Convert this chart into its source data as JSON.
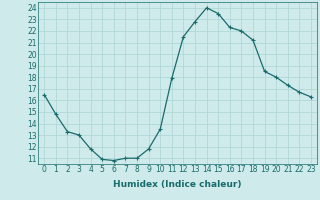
{
  "x": [
    0,
    1,
    2,
    3,
    4,
    5,
    6,
    7,
    8,
    9,
    10,
    11,
    12,
    13,
    14,
    15,
    16,
    17,
    18,
    19,
    20,
    21,
    22,
    23
  ],
  "y": [
    16.5,
    14.8,
    13.3,
    13.0,
    11.8,
    10.9,
    10.8,
    11.0,
    11.0,
    11.8,
    13.5,
    17.9,
    21.5,
    22.8,
    24.0,
    23.5,
    22.3,
    22.0,
    21.2,
    18.5,
    18.0,
    17.3,
    16.7,
    16.3
  ],
  "line_color": "#1a6b6b",
  "marker": "+",
  "marker_size": 3,
  "marker_lw": 0.8,
  "line_width": 0.9,
  "bg_color": "#ceeaea",
  "grid_color": "#b0d8d8",
  "xlabel": "Humidex (Indice chaleur)",
  "xtick_labels": [
    "0",
    "1",
    "2",
    "3",
    "4",
    "5",
    "6",
    "7",
    "8",
    "9",
    "10",
    "11",
    "12",
    "13",
    "14",
    "15",
    "16",
    "17",
    "18",
    "19",
    "20",
    "21",
    "22",
    "23"
  ],
  "ytick_labels": [
    "11",
    "12",
    "13",
    "14",
    "15",
    "16",
    "17",
    "18",
    "19",
    "20",
    "21",
    "22",
    "23",
    "24"
  ],
  "ytick_vals": [
    11,
    12,
    13,
    14,
    15,
    16,
    17,
    18,
    19,
    20,
    21,
    22,
    23,
    24
  ],
  "xlim": [
    -0.5,
    23.5
  ],
  "ylim": [
    10.5,
    24.5
  ],
  "tick_fontsize": 5.5,
  "xlabel_fontsize": 6.5
}
